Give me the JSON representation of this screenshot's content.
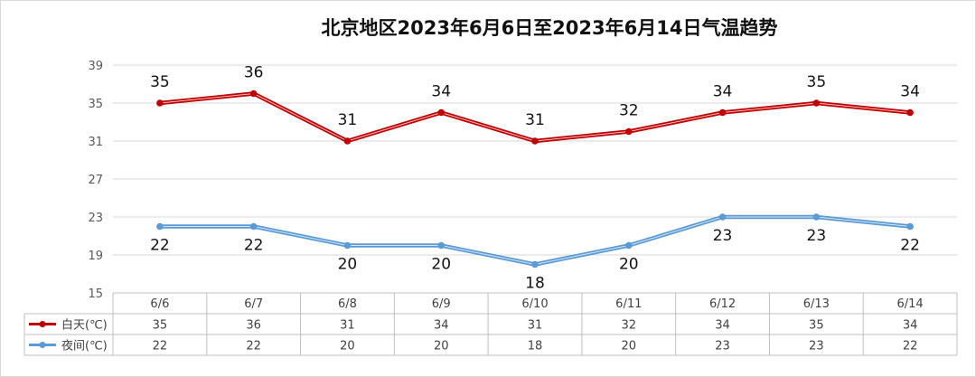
{
  "chart_data": {
    "type": "line",
    "title": "北京地区2023年6月6日至2023年6月14日气温趋势",
    "categories": [
      "6/6",
      "6/7",
      "6/8",
      "6/9",
      "6/10",
      "6/11",
      "6/12",
      "6/13",
      "6/14"
    ],
    "series": [
      {
        "name": "白天(℃)",
        "values": [
          35,
          36,
          31,
          34,
          31,
          32,
          34,
          35,
          34
        ],
        "color": "#c00000",
        "label_position": "above"
      },
      {
        "name": "夜间(℃)",
        "values": [
          22,
          22,
          20,
          20,
          18,
          20,
          23,
          23,
          22
        ],
        "color": "#5b9bd5",
        "label_position": "below"
      }
    ],
    "ylim": [
      15,
      39
    ],
    "yticks": [
      15,
      19,
      23,
      27,
      31,
      35,
      39
    ],
    "xlabel": "",
    "ylabel": "",
    "grid": true,
    "legend": "data-table",
    "data_table": true
  }
}
